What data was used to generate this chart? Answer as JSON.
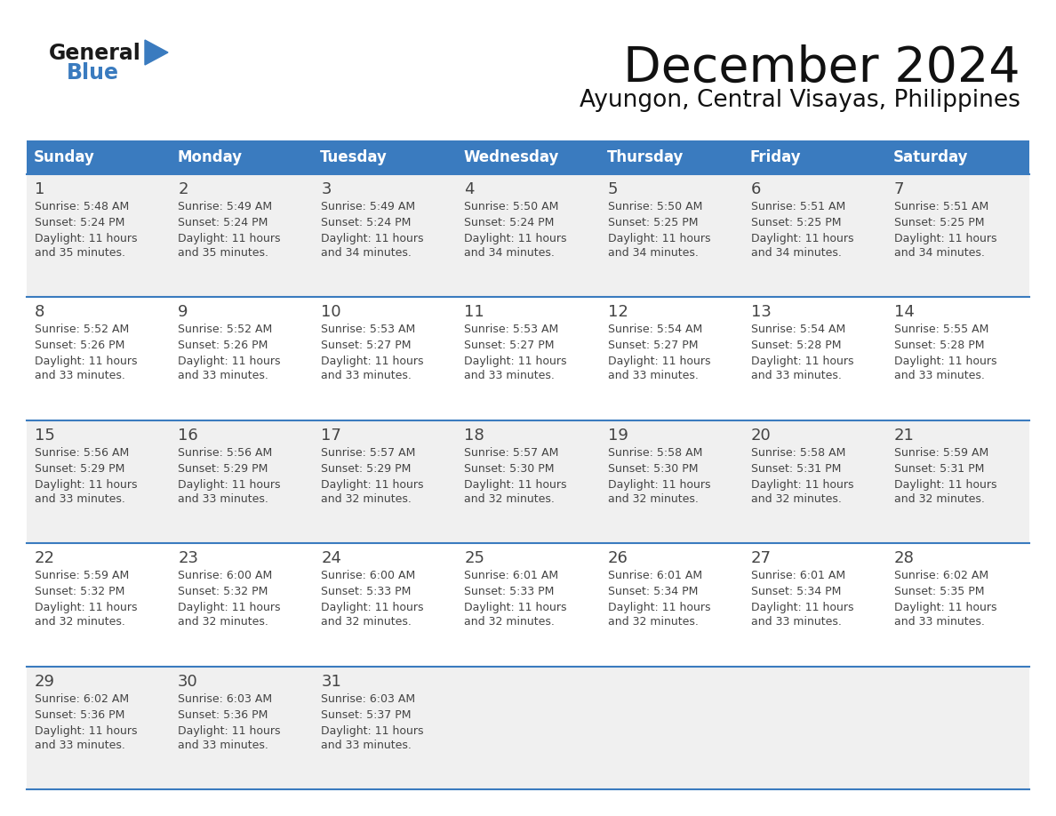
{
  "title": "December 2024",
  "subtitle": "Ayungon, Central Visayas, Philippines",
  "days_of_week": [
    "Sunday",
    "Monday",
    "Tuesday",
    "Wednesday",
    "Thursday",
    "Friday",
    "Saturday"
  ],
  "header_bg": "#3a7bbf",
  "header_text": "#ffffff",
  "cell_bg_odd": "#f0f0f0",
  "cell_bg_even": "#ffffff",
  "grid_line_color": "#3a7bbf",
  "text_color": "#444444",
  "title_color": "#111111",
  "logo_general_color": "#1a1a1a",
  "logo_blue_color": "#3a7bbf",
  "calendar_data": [
    [
      {
        "day": 1,
        "sunrise": "5:48 AM",
        "sunset": "5:24 PM",
        "daylight": "11 hours",
        "daylight2": "and 35 minutes."
      },
      {
        "day": 2,
        "sunrise": "5:49 AM",
        "sunset": "5:24 PM",
        "daylight": "11 hours",
        "daylight2": "and 35 minutes."
      },
      {
        "day": 3,
        "sunrise": "5:49 AM",
        "sunset": "5:24 PM",
        "daylight": "11 hours",
        "daylight2": "and 34 minutes."
      },
      {
        "day": 4,
        "sunrise": "5:50 AM",
        "sunset": "5:24 PM",
        "daylight": "11 hours",
        "daylight2": "and 34 minutes."
      },
      {
        "day": 5,
        "sunrise": "5:50 AM",
        "sunset": "5:25 PM",
        "daylight": "11 hours",
        "daylight2": "and 34 minutes."
      },
      {
        "day": 6,
        "sunrise": "5:51 AM",
        "sunset": "5:25 PM",
        "daylight": "11 hours",
        "daylight2": "and 34 minutes."
      },
      {
        "day": 7,
        "sunrise": "5:51 AM",
        "sunset": "5:25 PM",
        "daylight": "11 hours",
        "daylight2": "and 34 minutes."
      }
    ],
    [
      {
        "day": 8,
        "sunrise": "5:52 AM",
        "sunset": "5:26 PM",
        "daylight": "11 hours",
        "daylight2": "and 33 minutes."
      },
      {
        "day": 9,
        "sunrise": "5:52 AM",
        "sunset": "5:26 PM",
        "daylight": "11 hours",
        "daylight2": "and 33 minutes."
      },
      {
        "day": 10,
        "sunrise": "5:53 AM",
        "sunset": "5:27 PM",
        "daylight": "11 hours",
        "daylight2": "and 33 minutes."
      },
      {
        "day": 11,
        "sunrise": "5:53 AM",
        "sunset": "5:27 PM",
        "daylight": "11 hours",
        "daylight2": "and 33 minutes."
      },
      {
        "day": 12,
        "sunrise": "5:54 AM",
        "sunset": "5:27 PM",
        "daylight": "11 hours",
        "daylight2": "and 33 minutes."
      },
      {
        "day": 13,
        "sunrise": "5:54 AM",
        "sunset": "5:28 PM",
        "daylight": "11 hours",
        "daylight2": "and 33 minutes."
      },
      {
        "day": 14,
        "sunrise": "5:55 AM",
        "sunset": "5:28 PM",
        "daylight": "11 hours",
        "daylight2": "and 33 minutes."
      }
    ],
    [
      {
        "day": 15,
        "sunrise": "5:56 AM",
        "sunset": "5:29 PM",
        "daylight": "11 hours",
        "daylight2": "and 33 minutes."
      },
      {
        "day": 16,
        "sunrise": "5:56 AM",
        "sunset": "5:29 PM",
        "daylight": "11 hours",
        "daylight2": "and 33 minutes."
      },
      {
        "day": 17,
        "sunrise": "5:57 AM",
        "sunset": "5:29 PM",
        "daylight": "11 hours",
        "daylight2": "and 32 minutes."
      },
      {
        "day": 18,
        "sunrise": "5:57 AM",
        "sunset": "5:30 PM",
        "daylight": "11 hours",
        "daylight2": "and 32 minutes."
      },
      {
        "day": 19,
        "sunrise": "5:58 AM",
        "sunset": "5:30 PM",
        "daylight": "11 hours",
        "daylight2": "and 32 minutes."
      },
      {
        "day": 20,
        "sunrise": "5:58 AM",
        "sunset": "5:31 PM",
        "daylight": "11 hours",
        "daylight2": "and 32 minutes."
      },
      {
        "day": 21,
        "sunrise": "5:59 AM",
        "sunset": "5:31 PM",
        "daylight": "11 hours",
        "daylight2": "and 32 minutes."
      }
    ],
    [
      {
        "day": 22,
        "sunrise": "5:59 AM",
        "sunset": "5:32 PM",
        "daylight": "11 hours",
        "daylight2": "and 32 minutes."
      },
      {
        "day": 23,
        "sunrise": "6:00 AM",
        "sunset": "5:32 PM",
        "daylight": "11 hours",
        "daylight2": "and 32 minutes."
      },
      {
        "day": 24,
        "sunrise": "6:00 AM",
        "sunset": "5:33 PM",
        "daylight": "11 hours",
        "daylight2": "and 32 minutes."
      },
      {
        "day": 25,
        "sunrise": "6:01 AM",
        "sunset": "5:33 PM",
        "daylight": "11 hours",
        "daylight2": "and 32 minutes."
      },
      {
        "day": 26,
        "sunrise": "6:01 AM",
        "sunset": "5:34 PM",
        "daylight": "11 hours",
        "daylight2": "and 32 minutes."
      },
      {
        "day": 27,
        "sunrise": "6:01 AM",
        "sunset": "5:34 PM",
        "daylight": "11 hours",
        "daylight2": "and 33 minutes."
      },
      {
        "day": 28,
        "sunrise": "6:02 AM",
        "sunset": "5:35 PM",
        "daylight": "11 hours",
        "daylight2": "and 33 minutes."
      }
    ],
    [
      {
        "day": 29,
        "sunrise": "6:02 AM",
        "sunset": "5:36 PM",
        "daylight": "11 hours",
        "daylight2": "and 33 minutes."
      },
      {
        "day": 30,
        "sunrise": "6:03 AM",
        "sunset": "5:36 PM",
        "daylight": "11 hours",
        "daylight2": "and 33 minutes."
      },
      {
        "day": 31,
        "sunrise": "6:03 AM",
        "sunset": "5:37 PM",
        "daylight": "11 hours",
        "daylight2": "and 33 minutes."
      },
      null,
      null,
      null,
      null
    ]
  ]
}
